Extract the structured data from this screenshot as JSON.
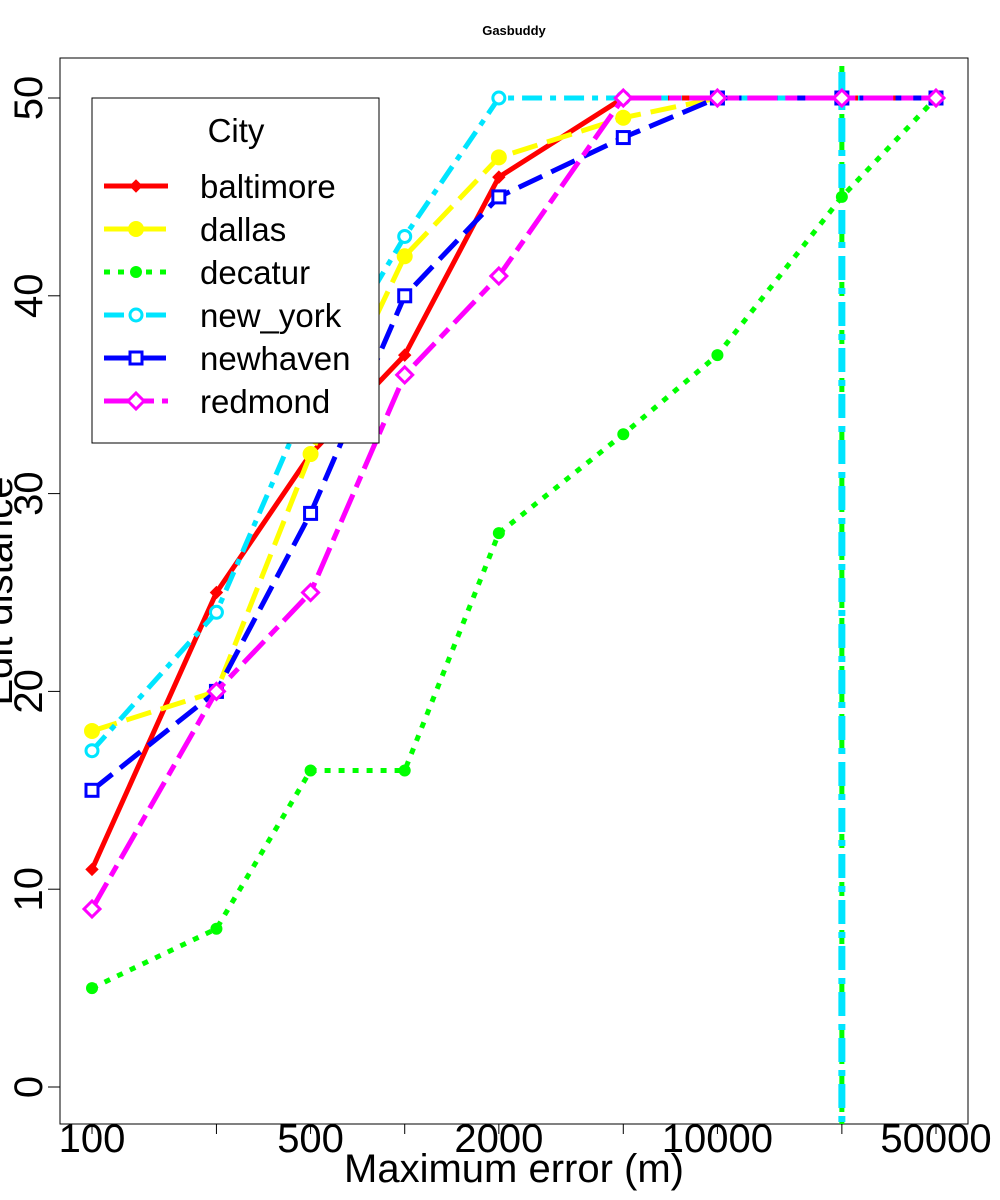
{
  "chart_data": {
    "type": "line",
    "title": "Gasbuddy",
    "xlabel": "Maximum error (m)",
    "ylabel": "Edit distance",
    "xscale": "log",
    "xlim": [
      100,
      50000
    ],
    "ylim": [
      0,
      50
    ],
    "x_ticks_labeled": [
      "100",
      "500",
      "2000",
      "10000",
      "50000"
    ],
    "y_ticks": [
      "0",
      "10",
      "20",
      "30",
      "40",
      "50"
    ],
    "x": [
      100,
      250,
      500,
      1000,
      2000,
      5000,
      10000,
      25000,
      50000
    ],
    "legend": {
      "title": "City",
      "placement": "top-left"
    },
    "vertical_line": {
      "x": 25000,
      "colors": [
        "#00ff00",
        "#00e5ff"
      ]
    },
    "series": [
      {
        "name": "baltimore",
        "color": "#ff0000",
        "marker": "filled-diamond",
        "dash": "solid",
        "values": [
          11,
          25,
          32,
          37,
          46,
          50,
          50,
          50,
          50
        ]
      },
      {
        "name": "dallas",
        "color": "#ffff00",
        "marker": "filled-circle",
        "dash": "long-dash",
        "values": [
          18,
          20,
          32,
          42,
          47,
          49,
          50,
          50,
          50
        ]
      },
      {
        "name": "decatur",
        "color": "#00ff00",
        "marker": "filled-circle-small",
        "dash": "dotted",
        "values": [
          5,
          8,
          16,
          16,
          28,
          33,
          37,
          45,
          50
        ]
      },
      {
        "name": "new_york",
        "color": "#00e5ff",
        "marker": "open-circle",
        "dash": "dash-dot",
        "values": [
          17,
          24,
          35,
          43,
          50,
          50,
          50,
          50,
          50
        ]
      },
      {
        "name": "newhaven",
        "color": "#0000ff",
        "marker": "open-square",
        "dash": "long-dash",
        "values": [
          15,
          20,
          29,
          40,
          45,
          48,
          50,
          50,
          50
        ]
      },
      {
        "name": "redmond",
        "color": "#ff00ff",
        "marker": "open-diamond",
        "dash": "two-dash",
        "values": [
          9,
          20,
          25,
          36,
          41,
          50,
          50,
          50,
          50
        ]
      }
    ]
  }
}
